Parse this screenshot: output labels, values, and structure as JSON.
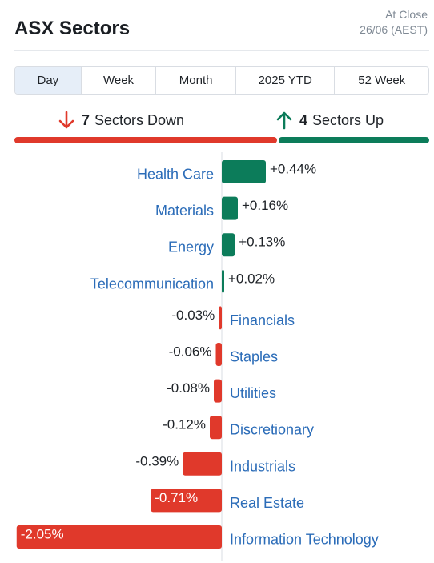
{
  "title": "ASX Sectors",
  "close_info": {
    "line1": "At Close",
    "line2": "26/06 (AEST)"
  },
  "tabs": [
    {
      "label": "Day",
      "active": true
    },
    {
      "label": "Week",
      "active": false
    },
    {
      "label": "Month",
      "active": false
    },
    {
      "label": "2025 YTD",
      "active": false
    },
    {
      "label": "52 Week",
      "active": false
    }
  ],
  "summary": {
    "down": {
      "count": "7",
      "text": "Sectors Down"
    },
    "up": {
      "count": "4",
      "text": "Sectors Up"
    }
  },
  "colors": {
    "down": "#e0392b",
    "up": "#0c7c5a",
    "label": "#2b6cb8",
    "axis": "#d9dde3"
  },
  "chart_data": {
    "type": "bar",
    "orientation": "horizontal",
    "categories": [
      "Health Care",
      "Materials",
      "Energy",
      "Telecommunication",
      "Financials",
      "Staples",
      "Utilities",
      "Discretionary",
      "Industrials",
      "Real Estate",
      "Information Technology"
    ],
    "values": [
      0.44,
      0.16,
      0.13,
      0.02,
      -0.03,
      -0.06,
      -0.08,
      -0.12,
      -0.39,
      -0.71,
      -2.05
    ],
    "value_labels": [
      "+0.44%",
      "+0.16%",
      "+0.13%",
      "+0.02%",
      "-0.03%",
      "-0.06%",
      "-0.08%",
      "-0.12%",
      "-0.39%",
      "-0.71%",
      "-2.05%"
    ]
  }
}
